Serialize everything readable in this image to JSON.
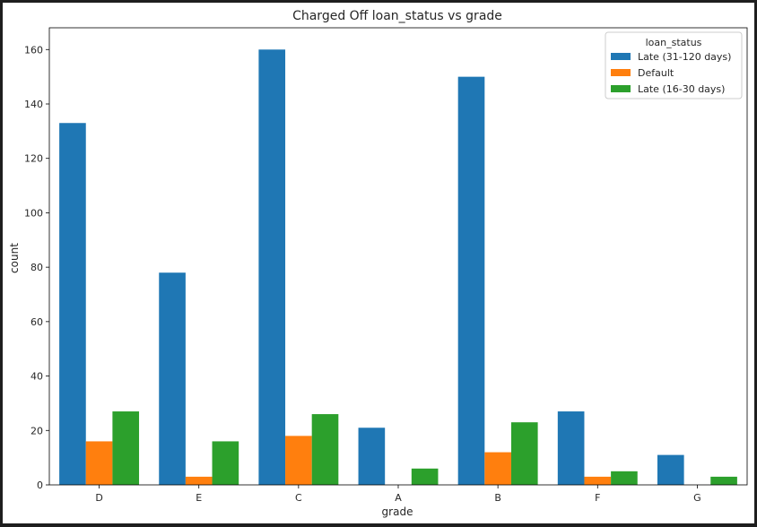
{
  "chart_data": {
    "type": "bar",
    "title": "Charged Off loan_status vs grade",
    "xlabel": "grade",
    "ylabel": "count",
    "categories": [
      "D",
      "E",
      "C",
      "A",
      "B",
      "F",
      "G"
    ],
    "ylim": [
      0,
      168
    ],
    "yticks": [
      0,
      20,
      40,
      60,
      80,
      100,
      120,
      140,
      160
    ],
    "grid": false,
    "legend": {
      "title": "loan_status",
      "placement": "top-right"
    },
    "series": [
      {
        "name": "Late (31-120 days)",
        "color": "#1f77b4",
        "values": [
          133,
          78,
          160,
          21,
          150,
          27,
          11
        ]
      },
      {
        "name": "Default",
        "color": "#ff7f0e",
        "values": [
          16,
          3,
          18,
          0,
          12,
          3,
          0
        ]
      },
      {
        "name": "Late (16-30 days)",
        "color": "#2ca02c",
        "values": [
          27,
          16,
          26,
          6,
          23,
          5,
          3
        ]
      }
    ]
  }
}
